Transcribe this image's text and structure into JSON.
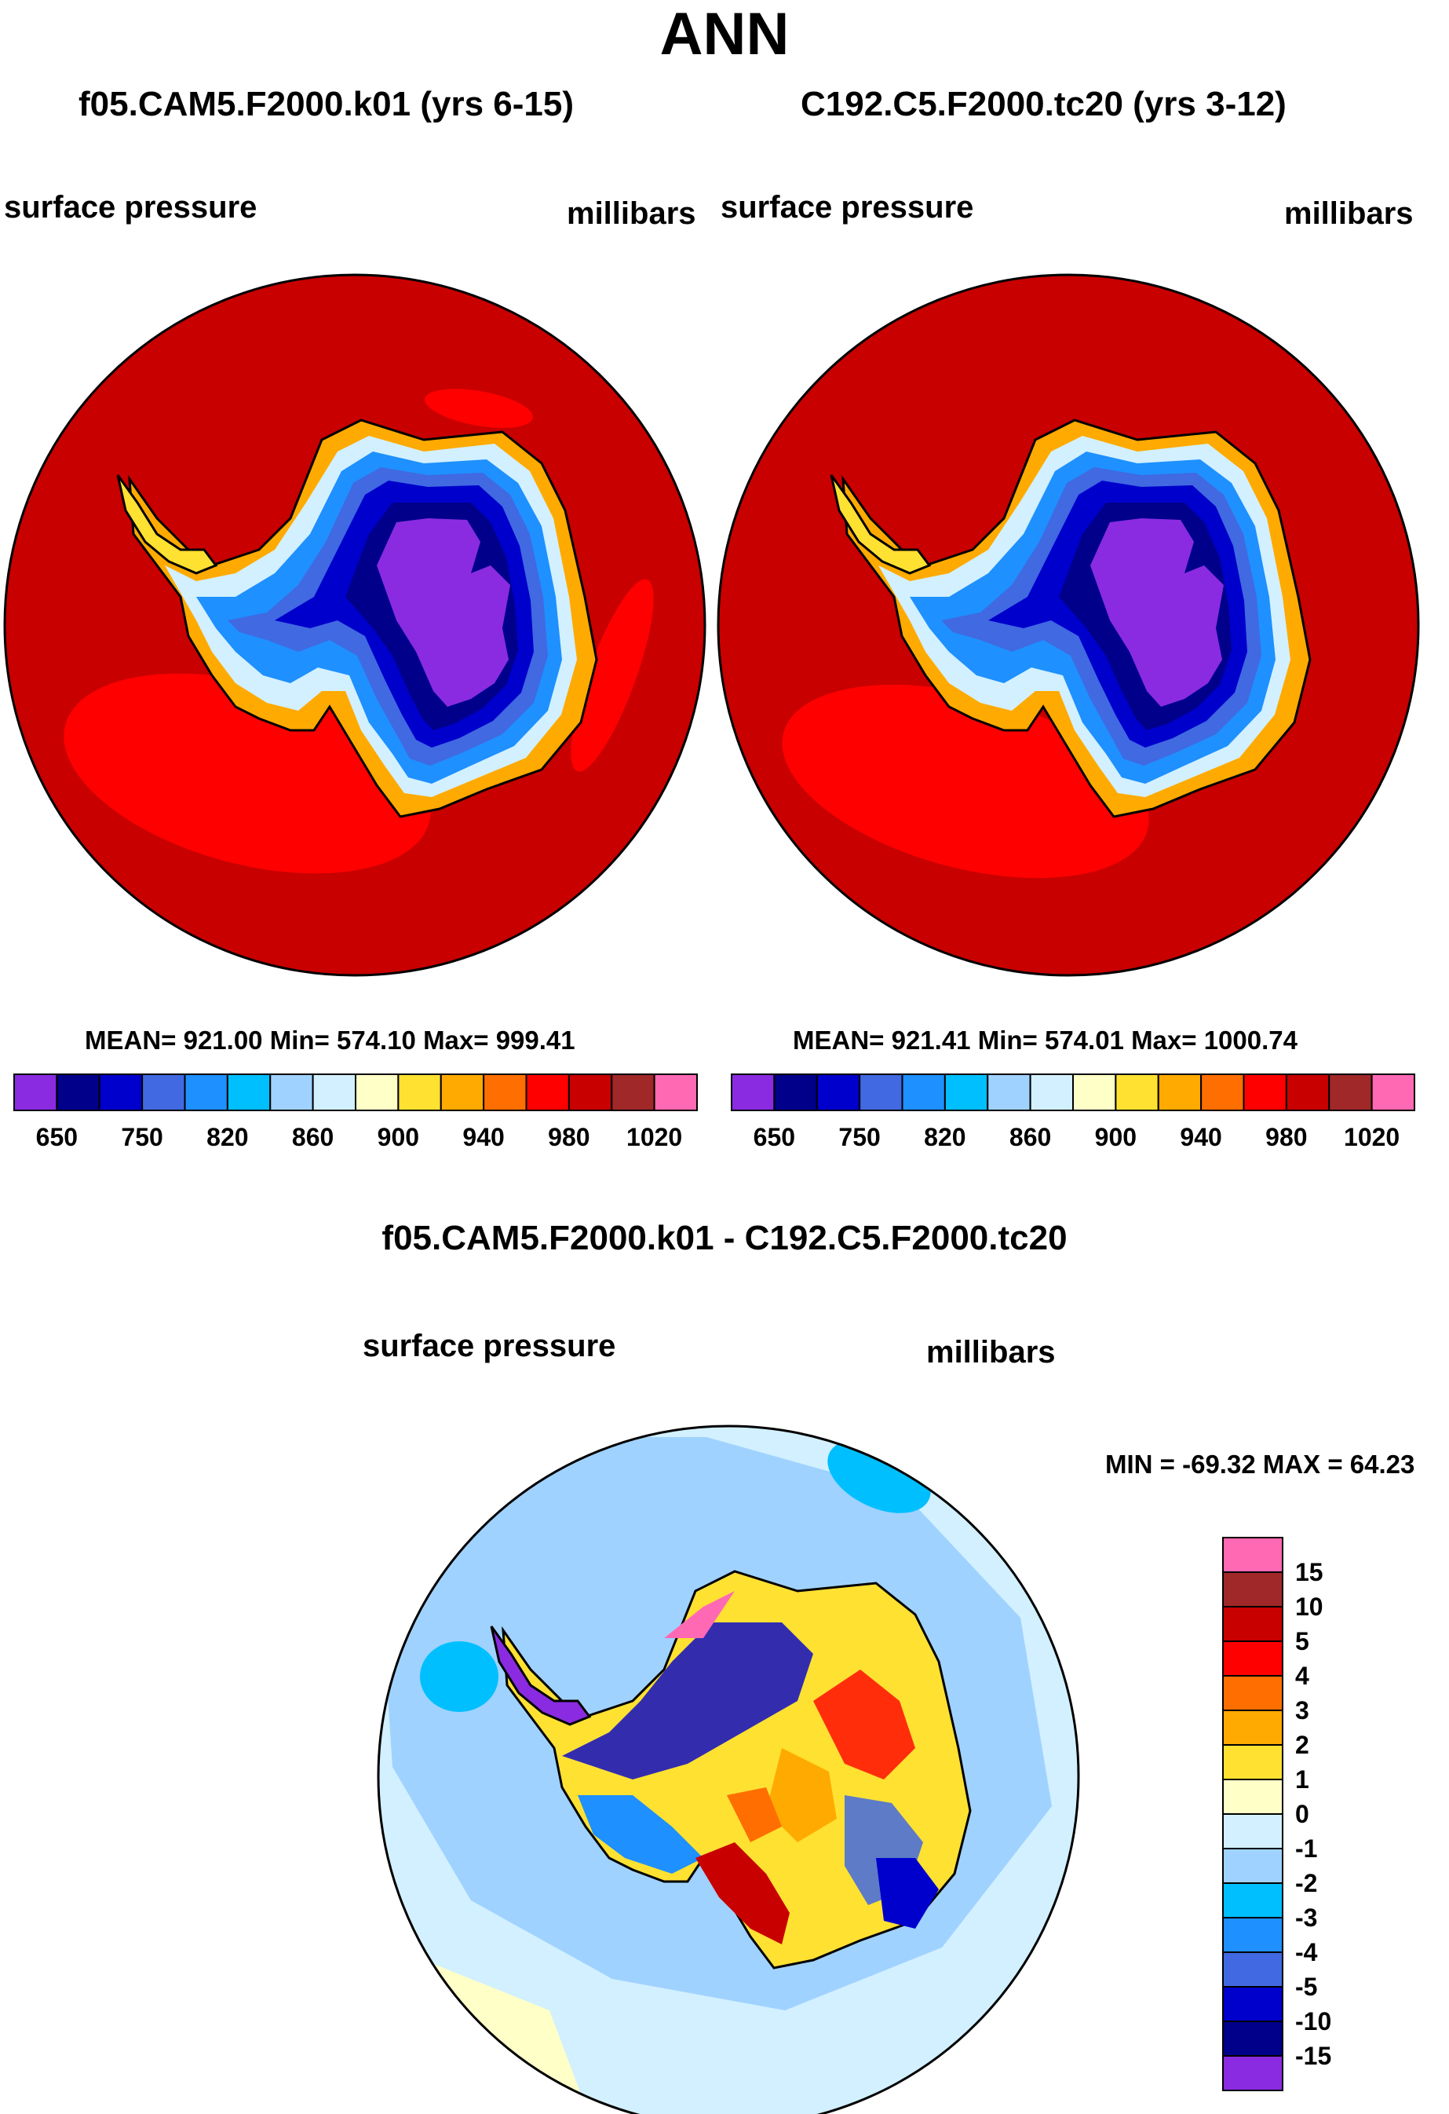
{
  "header": {
    "title": "ANN"
  },
  "panels": [
    {
      "case": "f05.CAM5.F2000.k01 (yrs 6-15)",
      "variable": "surface pressure",
      "units": "millibars",
      "stats": "MEAN= 921.00  Min= 574.10  Max= 999.41"
    },
    {
      "case": "C192.C5.F2000.tc20 (yrs 3-12)",
      "variable": "surface pressure",
      "units": "millibars",
      "stats": "MEAN= 921.41  Min= 574.01  Max= 1000.74"
    }
  ],
  "abs_colorbar": {
    "colors": [
      "#8a2be2",
      "#00008b",
      "#0000cd",
      "#4169e1",
      "#1e90ff",
      "#00bfff",
      "#a0d2ff",
      "#d2f0ff",
      "#ffffc8",
      "#ffe132",
      "#ffaa00",
      "#ff6e00",
      "#ff0000",
      "#c80000",
      "#a02828",
      "#ff69b4"
    ],
    "labels": [
      "650",
      "750",
      "820",
      "860",
      "900",
      "940",
      "980",
      "1020"
    ]
  },
  "difference": {
    "title": "f05.CAM5.F2000.k01 - C192.C5.F2000.tc20",
    "variable": "surface pressure",
    "units": "millibars",
    "stats": "MIN = -69.32 MAX =  64.23",
    "colorbar": {
      "colors": [
        "#ff69b4",
        "#a02828",
        "#c80000",
        "#ff0000",
        "#ff6e00",
        "#ffaa00",
        "#ffe132",
        "#ffffc8",
        "#d2f0ff",
        "#a0d2ff",
        "#00bfff",
        "#1e90ff",
        "#4169e1",
        "#0000cd",
        "#00008b",
        "#8a2be2"
      ],
      "labels": [
        "15",
        "10",
        "5",
        "4",
        "3",
        "2",
        "1",
        "0",
        "-1",
        "-2",
        "-3",
        "-4",
        "-5",
        "-10",
        "-15"
      ]
    }
  }
}
